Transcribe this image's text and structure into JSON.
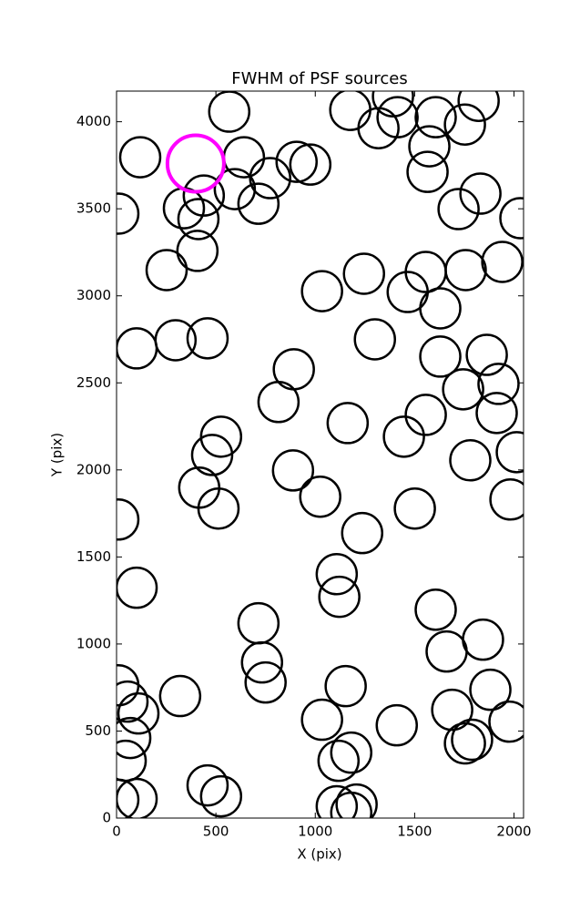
{
  "chart_data": {
    "type": "scatter",
    "title": "FWHM of PSF sources",
    "x_label": "X (pix)",
    "y_label": "Y (pix)",
    "xlim": [
      0,
      2048
    ],
    "ylim": [
      0,
      4176
    ],
    "xticks": [
      0,
      500,
      1000,
      1500,
      2000
    ],
    "yticks": [
      0,
      500,
      1000,
      1500,
      2000,
      2500,
      3000,
      3500,
      4000
    ],
    "grid": false,
    "series": [
      {
        "color": "#000000",
        "marker": "open-circle",
        "x": [
          567,
          119,
          641,
          339,
          439,
          595,
          773,
          714,
          412,
          407,
          252,
          9,
          101,
          297,
          458,
          892,
          815,
          526,
          481,
          416,
          513,
          888,
          1025,
          9,
          101,
          714,
          732,
          750,
          320,
          9,
          55,
          110,
          69,
          46,
          101,
          9,
          458,
          526,
          1034,
          1153,
          1117,
          1181,
          1108,
          1208,
          1181,
          1108,
          1121,
          1236,
          1163,
          1034,
          1245,
          1300,
          1176,
          1318,
          1391,
          1414,
          1606,
          1574,
          1565,
          1753,
          1822,
          1721,
          1831,
          2032,
          1941,
          1757,
          1556,
          1465,
          1629,
          1629,
          1863,
          1744,
          1922,
          1913,
          1556,
          1446,
          1780,
          2014,
          1982,
          1501,
          1606,
          1661,
          1844,
          1881,
          1977,
          1689,
          1410,
          1753,
          1789,
          906,
          975
        ],
        "values": [
          4058,
          3796,
          3796,
          3503,
          3576,
          3613,
          3676,
          3529,
          3441,
          3258,
          3148,
          3472,
          2698,
          2745,
          2756,
          2578,
          2390,
          2191,
          2086,
          1898,
          1778,
          1997,
          1846,
          1715,
          1323,
          1119,
          894,
          779,
          701,
          763,
          669,
          601,
          460,
          329,
          110,
          105,
          188,
          125,
          565,
          758,
          329,
          376,
          68,
          78,
          31,
          1401,
          1271,
          1637,
          2269,
          3027,
          3127,
          2750,
          4068,
          3963,
          4146,
          4026,
          4026,
          3859,
          3712,
          3984,
          4120,
          3498,
          3587,
          3446,
          3195,
          3148,
          3137,
          3022,
          2928,
          2651,
          2661,
          2463,
          2494,
          2327,
          2316,
          2191,
          2055,
          2102,
          1830,
          1778,
          1197,
          957,
          1025,
          737,
          554,
          622,
          533,
          429,
          450,
          3770,
          3754
        ]
      },
      {
        "color": "#ff00ff",
        "marker": "open-circle-large",
        "x": [
          398
        ],
        "values": [
          3760
        ]
      }
    ]
  }
}
